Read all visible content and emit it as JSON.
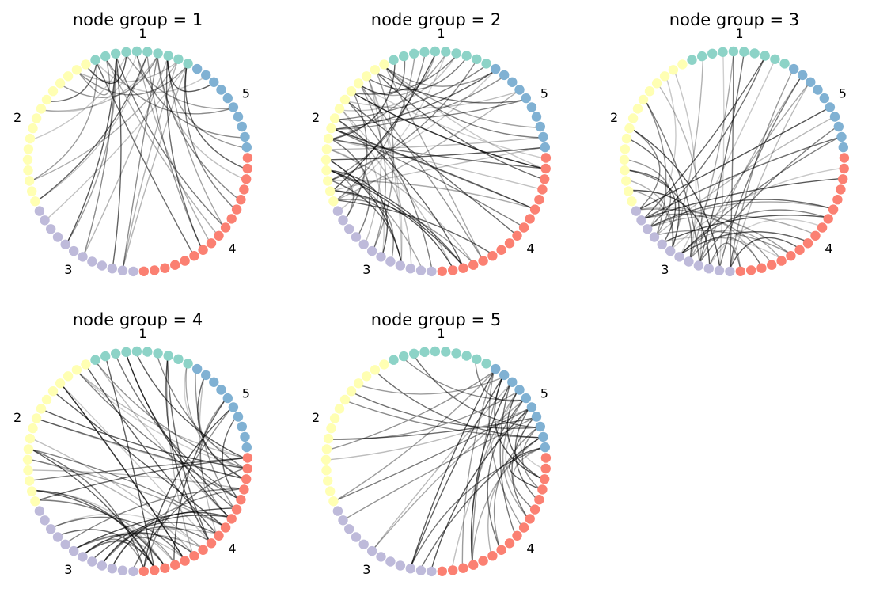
{
  "figure": {
    "panels": [
      {
        "title": "node group = 1",
        "group": 1
      },
      {
        "title": "node group = 2",
        "group": 2
      },
      {
        "title": "node group = 3",
        "group": 3
      },
      {
        "title": "node group = 4",
        "group": 4
      },
      {
        "title": "node group = 5",
        "group": 5
      }
    ],
    "groups": [
      {
        "label": "1",
        "color": "#8dd3c7",
        "count": 10
      },
      {
        "label": "2",
        "color": "#ffffb3",
        "count": 16
      },
      {
        "label": "3",
        "color": "#bebada",
        "count": 12
      },
      {
        "label": "4",
        "color": "#fb8072",
        "count": 17
      },
      {
        "label": "5",
        "color": "#80b1d3",
        "count": 10
      }
    ],
    "edge_color": "#000000"
  }
}
